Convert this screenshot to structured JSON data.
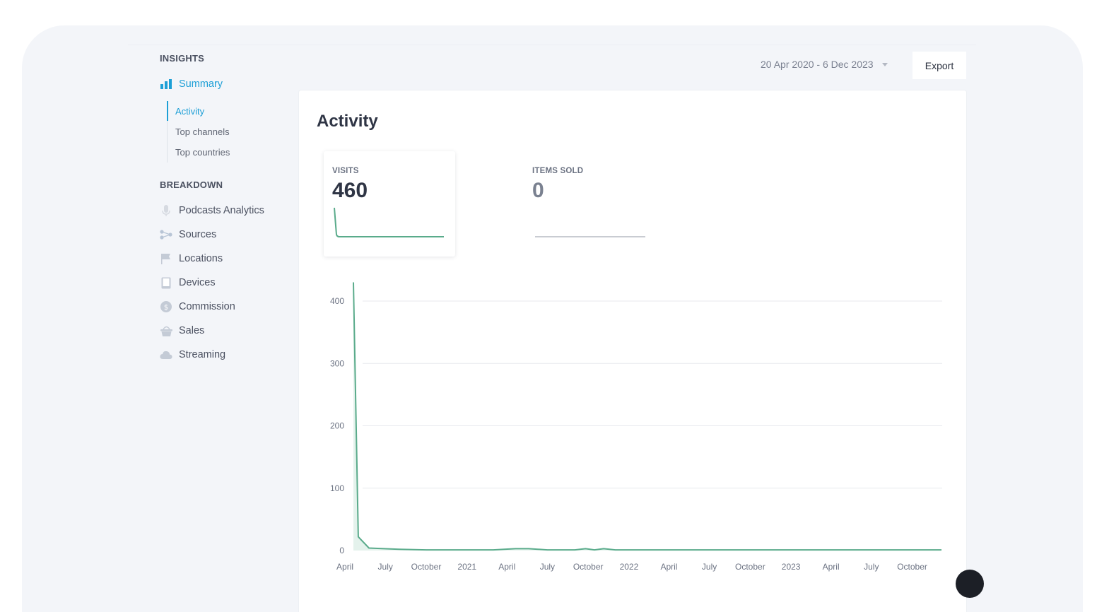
{
  "sidebar": {
    "insights_title": "INSIGHTS",
    "summary_label": "Summary",
    "sub_items": [
      "Activity",
      "Top channels",
      "Top countries"
    ],
    "breakdown_title": "BREAKDOWN",
    "breakdown_items": [
      {
        "label": "Podcasts Analytics",
        "icon": "microphone-icon"
      },
      {
        "label": "Sources",
        "icon": "share-nodes-icon"
      },
      {
        "label": "Locations",
        "icon": "flag-icon"
      },
      {
        "label": "Devices",
        "icon": "tablet-icon"
      },
      {
        "label": "Commission",
        "icon": "dollar-coin-icon"
      },
      {
        "label": "Sales",
        "icon": "basket-icon"
      },
      {
        "label": "Streaming",
        "icon": "cloud-icon"
      }
    ]
  },
  "header": {
    "date_range": "20 Apr 2020 - 6 Dec 2023",
    "export_label": "Export"
  },
  "card": {
    "title": "Activity",
    "metrics": [
      {
        "label": "VISITS",
        "value": "460"
      },
      {
        "label": "ITEMS SOLD",
        "value": "0"
      }
    ]
  },
  "colors": {
    "accent": "#1d9fd6",
    "series": "#5aab8b",
    "series_fill": "#e4f2ec"
  },
  "chart_data": {
    "type": "area",
    "title": "",
    "xlabel": "",
    "ylabel": "",
    "ylim": [
      0,
      440
    ],
    "yticks": [
      0,
      100,
      200,
      300,
      400
    ],
    "xtick_labels": [
      "April",
      "July",
      "October",
      "2021",
      "April",
      "July",
      "October",
      "2022",
      "April",
      "July",
      "October",
      "2023",
      "April",
      "July",
      "October"
    ],
    "xtick_dates": [
      "2020-04-01",
      "2020-07-01",
      "2020-10-01",
      "2021-01-01",
      "2021-04-01",
      "2021-07-01",
      "2021-10-01",
      "2022-01-01",
      "2022-04-01",
      "2022-07-01",
      "2022-10-01",
      "2023-01-01",
      "2023-04-01",
      "2023-07-01",
      "2023-10-01"
    ],
    "grid": true,
    "legend": "none",
    "series": [
      {
        "x": [
          "2020-04-20",
          "2020-05-01",
          "2020-05-25",
          "2020-08-01",
          "2020-10-01",
          "2021-03-01",
          "2021-04-20",
          "2021-05-20",
          "2021-07-01",
          "2021-09-01",
          "2021-09-25",
          "2021-10-15",
          "2021-11-05",
          "2021-12-01",
          "2023-12-06"
        ],
        "y": [
          430,
          22,
          4,
          2,
          1,
          1,
          3,
          3,
          1,
          1,
          3,
          1,
          3,
          1,
          1
        ]
      }
    ]
  }
}
